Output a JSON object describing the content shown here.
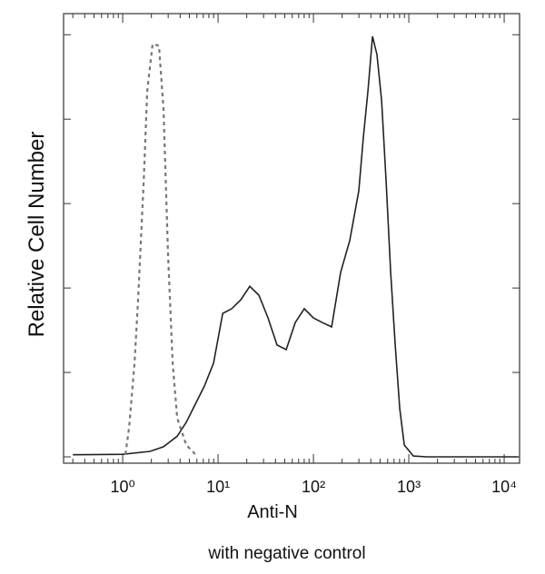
{
  "chart_data": {
    "type": "line",
    "x_label": "Anti-N",
    "y_label": "Relative Cell Number",
    "caption": "with negative control",
    "xscale": "log",
    "xlim": [
      0.24,
      14500
    ],
    "ylim": [
      -1.5,
      105
    ],
    "xticks": [
      {
        "value": 1,
        "label": "10⁰"
      },
      {
        "value": 10,
        "label": "10¹"
      },
      {
        "value": 100,
        "label": "10²"
      },
      {
        "value": 1000,
        "label": "10³"
      },
      {
        "value": 10000,
        "label": "10⁴"
      }
    ],
    "yticks": [
      0,
      20,
      40,
      60,
      80,
      100
    ],
    "series": [
      {
        "color": "#222222",
        "style": "solid",
        "x": [
          0.3,
          1.0,
          1.93,
          2.68,
          3.73,
          4.64,
          5.78,
          7.2,
          8.96,
          11.2,
          13.9,
          17.3,
          21.5,
          26.8,
          33.4,
          41.5,
          51.8,
          64.4,
          80.2,
          100,
          124,
          155,
          193,
          240,
          299,
          334,
          373,
          416,
          464,
          518,
          578,
          646,
          720,
          804,
          897,
          1116,
          1540,
          14000
        ],
        "values": [
          0.5,
          0.6,
          1.3,
          2.4,
          4.9,
          8.2,
          12.5,
          16.8,
          22.2,
          34.0,
          35.1,
          37.2,
          40.4,
          38.3,
          32.9,
          26.5,
          25.4,
          31.8,
          35.1,
          32.9,
          31.8,
          30.8,
          43.7,
          51.2,
          63.0,
          75.9,
          86.7,
          99.6,
          95.3,
          84.5,
          65.2,
          43.7,
          26.5,
          11.4,
          2.8,
          0.2,
          0,
          0
        ]
      },
      {
        "color": "#777777",
        "style": "dashed",
        "x": [
          1.07,
          1.17,
          1.33,
          1.45,
          1.66,
          1.81,
          2.06,
          2.4,
          2.68,
          2.99,
          3.34,
          3.73,
          4.64,
          5.78
        ],
        "values": [
          0.6,
          7.1,
          22.2,
          37.2,
          65.2,
          86.7,
          97.8,
          97.4,
          82.4,
          48.0,
          22.2,
          9.2,
          2.8,
          0.6
        ]
      }
    ]
  }
}
